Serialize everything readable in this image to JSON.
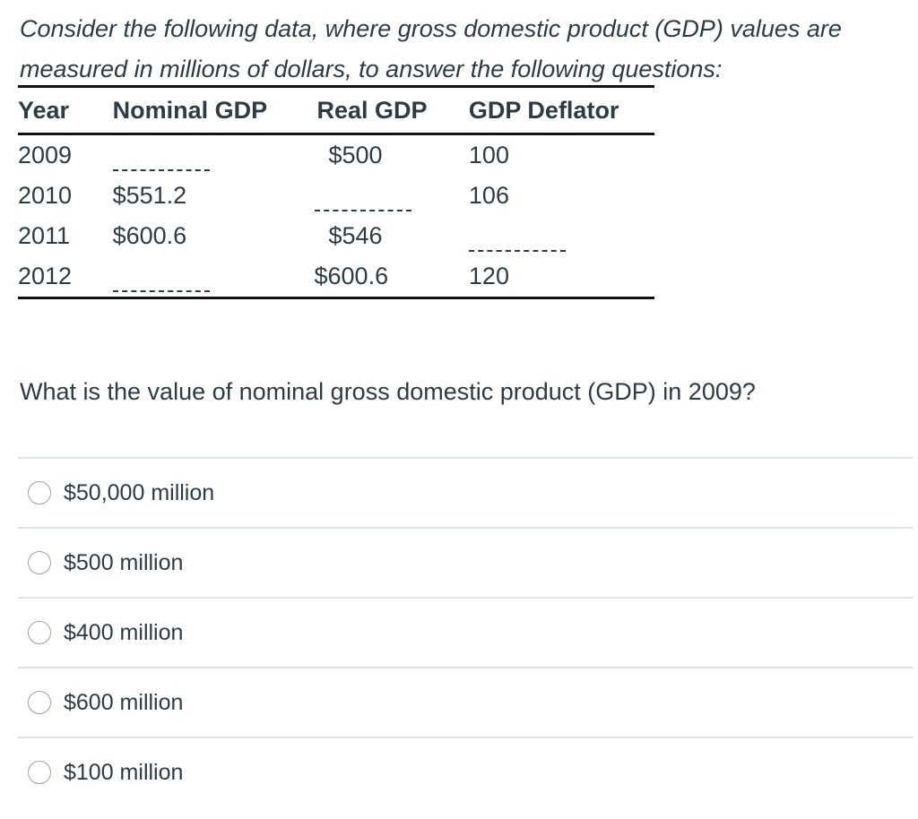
{
  "intro": "Consider the following data, where gross domestic product (GDP) values are measured in millions of dollars, to answer the following questions:",
  "table": {
    "headers": [
      "Year",
      "Nominal GDP",
      "Real GDP",
      "GDP Deflator"
    ],
    "rows": [
      {
        "year": "2009",
        "nominal": "",
        "real": "$500",
        "deflator": "100"
      },
      {
        "year": "2010",
        "nominal": "$551.2",
        "real": "",
        "deflator": "106"
      },
      {
        "year": "2011",
        "nominal": "$600.6",
        "real": "$546",
        "deflator": ""
      },
      {
        "year": "2012",
        "nominal": "",
        "real": "$600.6",
        "deflator": "120"
      }
    ]
  },
  "question": "What is the value of nominal gross domestic product (GDP) in 2009?",
  "answers": [
    {
      "label": "$50,000 million"
    },
    {
      "label": "$500 million"
    },
    {
      "label": "$400 million"
    },
    {
      "label": "$600 million"
    },
    {
      "label": "$100 million"
    }
  ]
}
